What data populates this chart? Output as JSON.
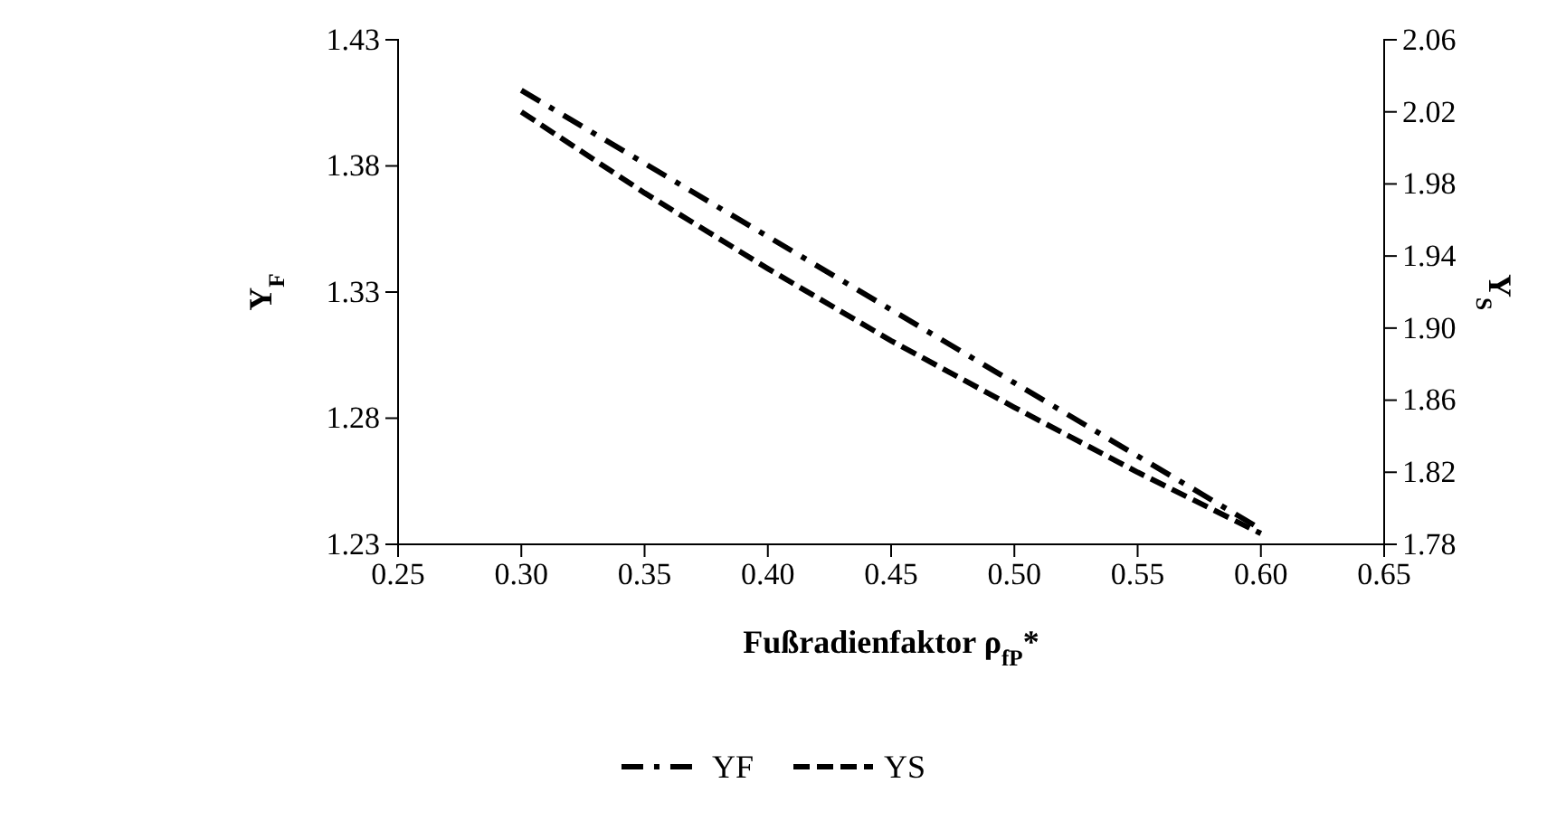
{
  "chart_data": {
    "type": "line",
    "xlabel": "Fußradienfaktor ρ$_{fP}$*",
    "ylabel": "Y$_{F}$",
    "y2label": "Y$_{S}$",
    "x": [
      0.3,
      0.35,
      0.4,
      0.45,
      0.5,
      0.55,
      0.6
    ],
    "series": [
      {
        "name": "YF",
        "color": "#000000",
        "line_style": "dashdot",
        "values": [
          1.41,
          1.381,
          1.352,
          1.323,
          1.294,
          1.265,
          1.236
        ]
      },
      {
        "name": "YS",
        "color": "#000000",
        "line_style": "dashed",
        "axis": "y2",
        "values": [
          2.02,
          1.975,
          1.933,
          1.893,
          1.856,
          1.82,
          1.786
        ]
      }
    ],
    "xlim": [
      0.25,
      0.65
    ],
    "xticks": [
      {
        "value": 0.25,
        "label": "0.25"
      },
      {
        "value": 0.3,
        "label": "0.30"
      },
      {
        "value": 0.35,
        "label": "0.35"
      },
      {
        "value": 0.4,
        "label": "0.40"
      },
      {
        "value": 0.45,
        "label": "0.45"
      },
      {
        "value": 0.5,
        "label": "0.50"
      },
      {
        "value": 0.55,
        "label": "0.55"
      },
      {
        "value": 0.6,
        "label": "0.60"
      },
      {
        "value": 0.65,
        "label": "0.65"
      }
    ],
    "ylim": [
      1.23,
      1.43
    ],
    "yticks": [
      1.23,
      1.28,
      1.33,
      1.38,
      1.43
    ],
    "y2lim": [
      1.78,
      2.06
    ],
    "y2ticks": [
      1.78,
      1.82,
      1.86,
      {
        "value": 1.9,
        "label": "1.90"
      },
      1.94,
      1.98,
      2.02,
      2.06
    ],
    "grid": false,
    "legend": "bottom",
    "marker": "none"
  }
}
